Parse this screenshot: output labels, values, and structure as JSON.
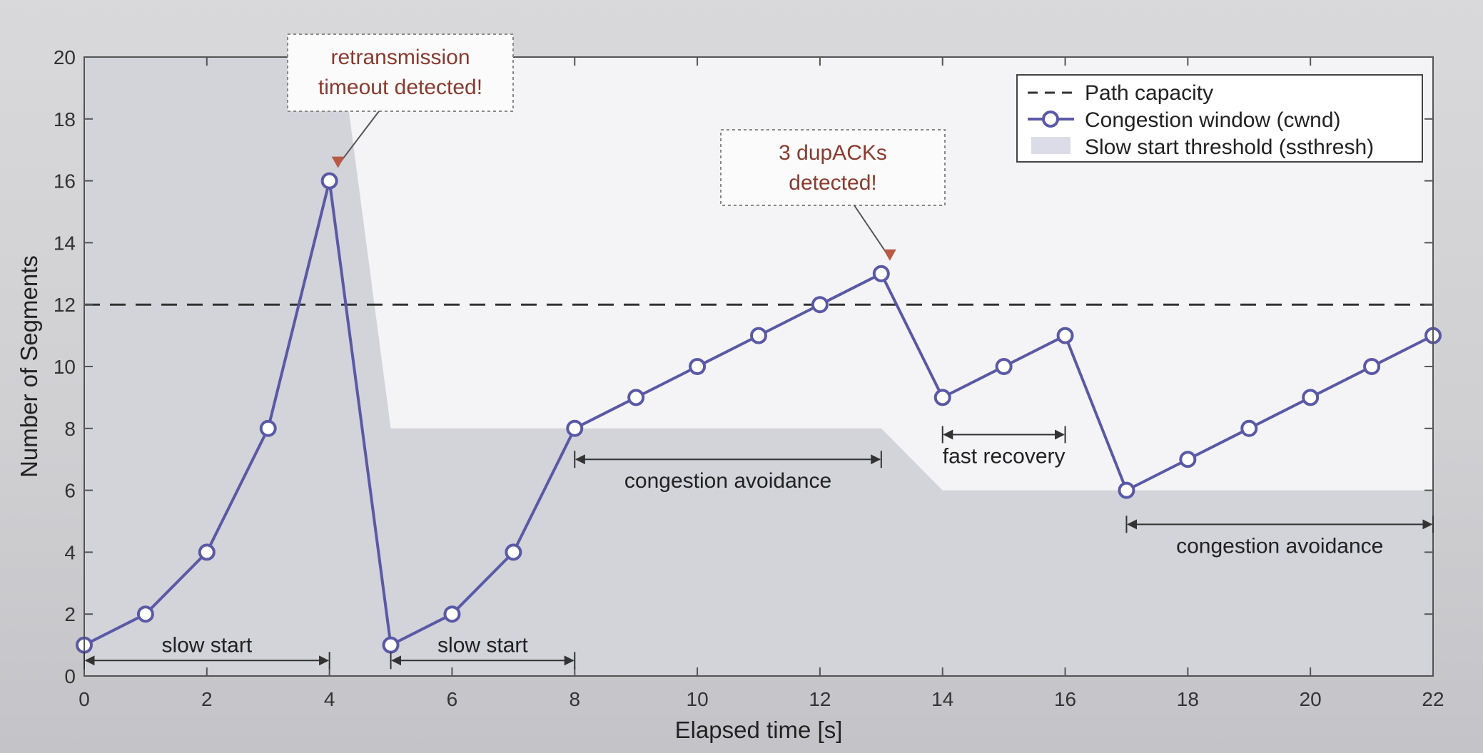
{
  "chart_data": {
    "type": "line",
    "xlabel": "Elapsed time [s]",
    "ylabel": "Number of Segments",
    "xlim": [
      0,
      22
    ],
    "ylim": [
      0,
      20
    ],
    "xticks": [
      0,
      2,
      4,
      6,
      8,
      10,
      12,
      14,
      16,
      18,
      20,
      22
    ],
    "yticks": [
      0,
      2,
      4,
      6,
      8,
      10,
      12,
      14,
      16,
      18,
      20
    ],
    "legend_position": "top-right",
    "legend": [
      "Path capacity",
      "Congestion window (cwnd)",
      "Slow start threshold (ssthresh)"
    ],
    "series": [
      {
        "name": "Congestion window (cwnd)",
        "kind": "line-markers",
        "color": "#5a59a6",
        "x": [
          0,
          1,
          2,
          3,
          4,
          5,
          6,
          7,
          8,
          9,
          10,
          11,
          12,
          13,
          14,
          15,
          16,
          17,
          18,
          19,
          20,
          21,
          22
        ],
        "y": [
          1,
          2,
          4,
          8,
          16,
          1,
          2,
          4,
          8,
          9,
          10,
          11,
          12,
          13,
          9,
          10,
          11,
          6,
          7,
          8,
          9,
          10,
          11
        ]
      },
      {
        "name": "Path capacity",
        "kind": "dashed",
        "color": "#333333",
        "x": [
          0,
          22
        ],
        "y": [
          12,
          12
        ]
      },
      {
        "name": "Slow start threshold (ssthresh)",
        "kind": "area",
        "color": "#c8c8d0",
        "x": [
          0,
          4.2,
          5,
          13,
          14,
          22
        ],
        "y": [
          20,
          20,
          8,
          8,
          6,
          6
        ]
      }
    ],
    "annotations": [
      {
        "text": "retransmission\ntimeout detected!",
        "x": 4,
        "y": 16
      },
      {
        "text": "3 dupACKs\ndetected!",
        "x": 13,
        "y": 13
      }
    ],
    "phases": [
      {
        "label": "slow start",
        "x_start": 0,
        "x_end": 4
      },
      {
        "label": "slow start",
        "x_start": 5,
        "x_end": 8
      },
      {
        "label": "congestion avoidance",
        "x_start": 8,
        "x_end": 13
      },
      {
        "label": "fast recovery",
        "x_start": 14,
        "x_end": 16
      },
      {
        "label": "congestion avoidance",
        "x_start": 17,
        "x_end": 22
      }
    ]
  }
}
